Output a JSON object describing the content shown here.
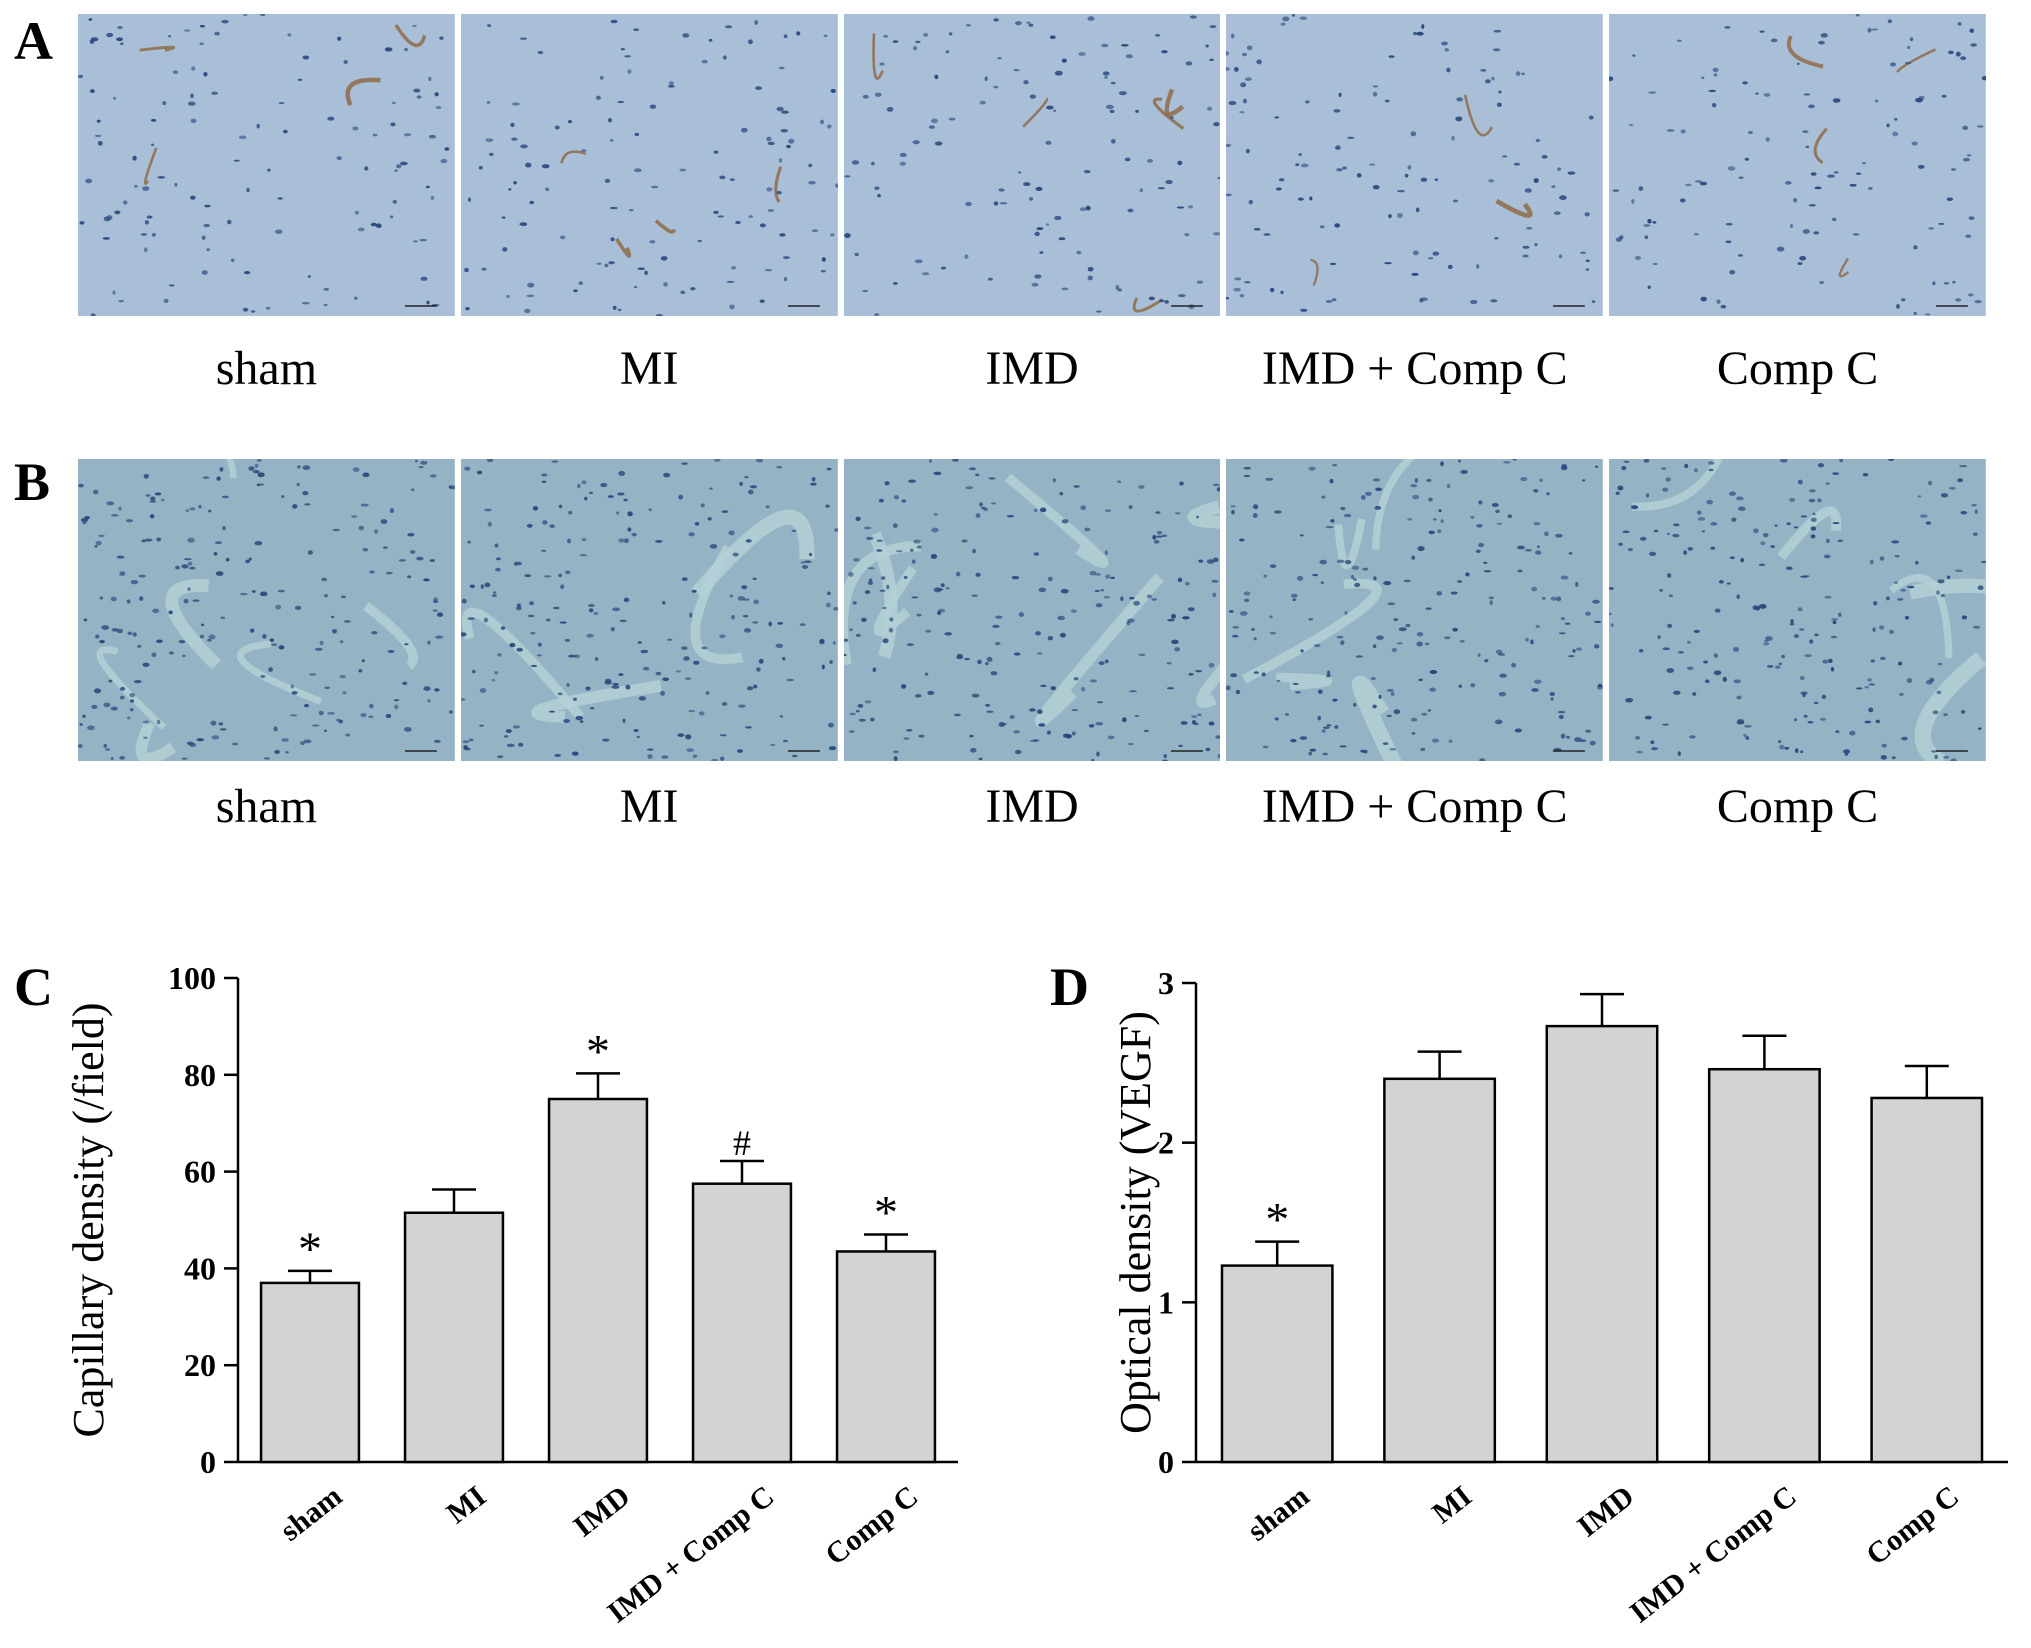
{
  "panels": {
    "a": {
      "letter": "A",
      "images": [
        {
          "label": "sham",
          "stain": "brown"
        },
        {
          "label": "MI",
          "stain": "brown"
        },
        {
          "label": "IMD",
          "stain": "brown"
        },
        {
          "label": "IMD + Comp C",
          "stain": "brown"
        },
        {
          "label": "Comp C",
          "stain": "brown"
        }
      ]
    },
    "b": {
      "letter": "B",
      "images": [
        {
          "label": "sham",
          "stain": "blue"
        },
        {
          "label": "MI",
          "stain": "blue"
        },
        {
          "label": "IMD",
          "stain": "blue"
        },
        {
          "label": "IMD + Comp C",
          "stain": "blue"
        },
        {
          "label": "Comp C",
          "stain": "blue"
        }
      ]
    },
    "c": {
      "letter": "C"
    },
    "d": {
      "letter": "D"
    }
  },
  "colors": {
    "bar_fill": "#d3d3d3",
    "tissue_a": "#a9bfd8",
    "tissue_b": "#95b3c4",
    "nucleus": "#27457a",
    "stain_brown": "#8a5a2b"
  },
  "chart_data": [
    {
      "panel": "C",
      "type": "bar",
      "categories": [
        "sham",
        "MI",
        "IMD",
        "IMD + Comp C",
        "Comp C"
      ],
      "values": [
        37,
        51.5,
        75,
        57.5,
        43.5
      ],
      "errors": [
        2.5,
        4.8,
        5.3,
        4.7,
        3.5
      ],
      "annotations": [
        "*",
        "",
        "*",
        "#",
        "*"
      ],
      "ylabel": "Capillary density (/field)",
      "ylim": [
        0,
        100
      ],
      "yticks": [
        0,
        20,
        40,
        60,
        80,
        100
      ]
    },
    {
      "panel": "D",
      "type": "bar",
      "categories": [
        "sham",
        "MI",
        "IMD",
        "IMD + Comp C",
        "Comp C"
      ],
      "values": [
        1.23,
        2.4,
        2.73,
        2.46,
        2.28
      ],
      "errors": [
        0.15,
        0.17,
        0.2,
        0.21,
        0.2
      ],
      "annotations": [
        "*",
        "",
        "",
        "",
        ""
      ],
      "ylabel": "Optical density (VEGF)",
      "ylim": [
        0,
        3
      ],
      "yticks": [
        0,
        1,
        2,
        3
      ]
    }
  ]
}
